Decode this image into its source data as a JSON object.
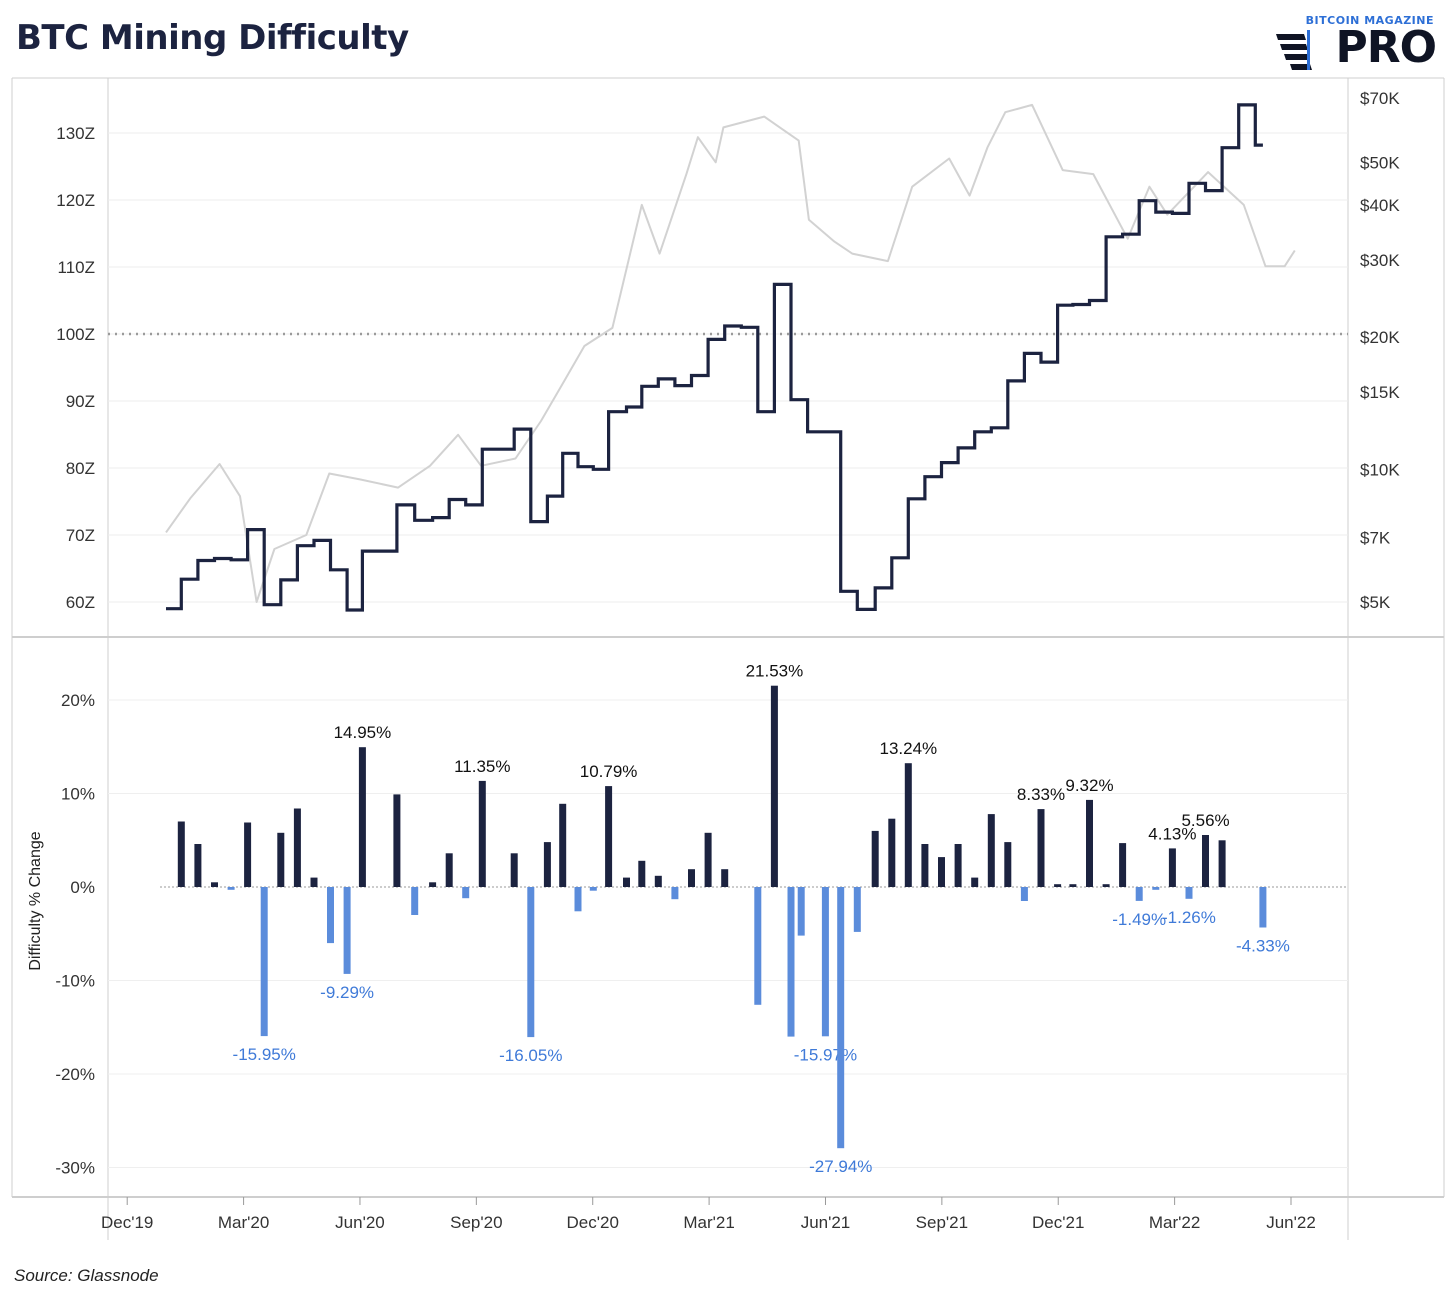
{
  "title": "BTC Mining Difficulty",
  "logo": {
    "top_text": "BITCOIN MAGAZINE",
    "main_text": "PRO"
  },
  "source": "Source: Glassnode",
  "colors": {
    "difficulty_line": "#1c2340",
    "price_line": "#d2d2d2",
    "bar_positive": "#1c2340",
    "bar_negative": "#5b8cdb",
    "negative_label": "#3f7ad8"
  },
  "chart_data": [
    {
      "type": "line",
      "title": "BTC Mining Difficulty",
      "x_tick_labels": [
        "Dec'19",
        "Mar'20",
        "Jun'20",
        "Sep'20",
        "Dec'20",
        "Mar'21",
        "Jun'21",
        "Sep'21",
        "Dec'21",
        "Mar'22",
        "Jun'22"
      ],
      "x_range": [
        "2019-12",
        "2022-06"
      ],
      "left_axis": {
        "tick_labels": [
          "60Z",
          "70Z",
          "80Z",
          "90Z",
          "100Z",
          "110Z",
          "120Z",
          "130Z"
        ],
        "ylim": [
          55,
          135
        ],
        "reference_line": 100
      },
      "right_axis": {
        "scale": "log",
        "tick_labels": [
          "$5K",
          "$7K",
          "$10K",
          "$15K",
          "$20K",
          "$30K",
          "$40K",
          "$50K",
          "$70K"
        ],
        "tick_values": [
          5000,
          7000,
          10000,
          15000,
          20000,
          30000,
          40000,
          50000,
          70000
        ]
      },
      "series": [
        {
          "axis": "left",
          "step": true,
          "points": [
            [
              "2020-01-01",
              59.0
            ],
            [
              "2020-01-13",
              63.4
            ],
            [
              "2020-01-26",
              66.2
            ],
            [
              "2020-02-08",
              66.5
            ],
            [
              "2020-02-21",
              66.3
            ],
            [
              "2020-03-05",
              70.8
            ],
            [
              "2020-03-18",
              59.6
            ],
            [
              "2020-03-31",
              63.3
            ],
            [
              "2020-04-13",
              68.4
            ],
            [
              "2020-04-26",
              69.2
            ],
            [
              "2020-05-09",
              64.8
            ],
            [
              "2020-05-22",
              58.8
            ],
            [
              "2020-06-03",
              67.6
            ],
            [
              "2020-06-20",
              67.6
            ],
            [
              "2020-06-30",
              74.5
            ],
            [
              "2020-07-14",
              72.2
            ],
            [
              "2020-07-28",
              72.6
            ],
            [
              "2020-08-10",
              75.3
            ],
            [
              "2020-08-23",
              74.5
            ],
            [
              "2020-09-05",
              82.8
            ],
            [
              "2020-09-18",
              82.8
            ],
            [
              "2020-09-30",
              85.8
            ],
            [
              "2020-10-13",
              72.0
            ],
            [
              "2020-10-26",
              75.8
            ],
            [
              "2020-11-07",
              82.2
            ],
            [
              "2020-11-19",
              80.2
            ],
            [
              "2020-12-01",
              79.8
            ],
            [
              "2020-12-13",
              88.4
            ],
            [
              "2020-12-27",
              89.1
            ],
            [
              "2021-01-08",
              92.2
            ],
            [
              "2021-01-21",
              93.3
            ],
            [
              "2021-02-03",
              92.3
            ],
            [
              "2021-02-16",
              93.8
            ],
            [
              "2021-03-01",
              99.2
            ],
            [
              "2021-03-14",
              101.2
            ],
            [
              "2021-03-27",
              101.0
            ],
            [
              "2021-04-09",
              88.4
            ],
            [
              "2021-04-22",
              107.4
            ],
            [
              "2021-05-05",
              90.2
            ],
            [
              "2021-05-18",
              85.4
            ],
            [
              "2021-06-01",
              85.4
            ],
            [
              "2021-06-13",
              61.6
            ],
            [
              "2021-06-26",
              58.9
            ],
            [
              "2021-07-10",
              62.1
            ],
            [
              "2021-07-23",
              66.6
            ],
            [
              "2021-08-05",
              75.4
            ],
            [
              "2021-08-18",
              78.7
            ],
            [
              "2021-08-31",
              80.8
            ],
            [
              "2021-09-13",
              83.0
            ],
            [
              "2021-09-26",
              85.4
            ],
            [
              "2021-10-09",
              86.0
            ],
            [
              "2021-10-22",
              93.0
            ],
            [
              "2021-11-04",
              97.1
            ],
            [
              "2021-11-17",
              95.8
            ],
            [
              "2021-11-30",
              104.3
            ],
            [
              "2021-12-12",
              104.4
            ],
            [
              "2021-12-25",
              105.0
            ],
            [
              "2022-01-07",
              114.5
            ],
            [
              "2022-01-20",
              114.9
            ],
            [
              "2022-02-02",
              119.9
            ],
            [
              "2022-02-15",
              118.2
            ],
            [
              "2022-02-28",
              118.0
            ],
            [
              "2022-03-13",
              122.5
            ],
            [
              "2022-03-26",
              121.4
            ],
            [
              "2022-04-08",
              127.8
            ],
            [
              "2022-04-21",
              134.2
            ],
            [
              "2022-05-04",
              128.2
            ],
            [
              "2022-05-10",
              128.2
            ]
          ]
        },
        {
          "axis": "right",
          "points": [
            [
              "2020-01-01",
              7200
            ],
            [
              "2020-01-20",
              8600
            ],
            [
              "2020-02-12",
              10300
            ],
            [
              "2020-02-28",
              8700
            ],
            [
              "2020-03-12",
              5000
            ],
            [
              "2020-03-26",
              6600
            ],
            [
              "2020-04-20",
              7100
            ],
            [
              "2020-05-08",
              9800
            ],
            [
              "2020-06-01",
              9500
            ],
            [
              "2020-07-01",
              9100
            ],
            [
              "2020-07-26",
              10200
            ],
            [
              "2020-08-17",
              12000
            ],
            [
              "2020-09-04",
              10200
            ],
            [
              "2020-10-01",
              10600
            ],
            [
              "2020-10-21",
              12900
            ],
            [
              "2020-11-06",
              15500
            ],
            [
              "2020-11-24",
              19100
            ],
            [
              "2020-12-16",
              21000
            ],
            [
              "2021-01-08",
              40000
            ],
            [
              "2021-01-22",
              31000
            ],
            [
              "2021-02-12",
              47000
            ],
            [
              "2021-02-21",
              57000
            ],
            [
              "2021-03-07",
              50000
            ],
            [
              "2021-03-13",
              60000
            ],
            [
              "2021-04-14",
              63500
            ],
            [
              "2021-05-11",
              56000
            ],
            [
              "2021-05-19",
              37000
            ],
            [
              "2021-06-08",
              33000
            ],
            [
              "2021-06-22",
              31000
            ],
            [
              "2021-07-20",
              29800
            ],
            [
              "2021-08-08",
              44000
            ],
            [
              "2021-09-06",
              51000
            ],
            [
              "2021-09-22",
              42000
            ],
            [
              "2021-10-06",
              54000
            ],
            [
              "2021-10-20",
              65000
            ],
            [
              "2021-11-10",
              67500
            ],
            [
              "2021-12-04",
              48000
            ],
            [
              "2021-12-28",
              47000
            ],
            [
              "2022-01-24",
              33500
            ],
            [
              "2022-02-10",
              44000
            ],
            [
              "2022-02-24",
              38000
            ],
            [
              "2022-03-28",
              47500
            ],
            [
              "2022-04-25",
              40000
            ],
            [
              "2022-05-12",
              29000
            ],
            [
              "2022-05-27",
              29000
            ],
            [
              "2022-06-04",
              31500
            ]
          ]
        }
      ]
    },
    {
      "type": "bar",
      "ylabel": "Difficulty % Change",
      "y_tick_labels": [
        "20%",
        "10%",
        "0%",
        "-10%",
        "-20%",
        "-30%"
      ],
      "ylim": [
        -33,
        26
      ],
      "x_tick_labels": [
        "Dec'19",
        "Mar'20",
        "Jun'20",
        "Sep'20",
        "Dec'20",
        "Mar'21",
        "Jun'21",
        "Sep'21",
        "Dec'21",
        "Mar'22",
        "Jun'22"
      ],
      "x_range": [
        "2019-12",
        "2022-06"
      ],
      "bars": [
        [
          "2020-01-13",
          7.0
        ],
        [
          "2020-01-26",
          4.6
        ],
        [
          "2020-02-08",
          0.5
        ],
        [
          "2020-02-21",
          -0.3
        ],
        [
          "2020-03-05",
          6.9
        ],
        [
          "2020-03-18",
          -15.95
        ],
        [
          "2020-03-31",
          5.8
        ],
        [
          "2020-04-13",
          8.4
        ],
        [
          "2020-04-26",
          1.0
        ],
        [
          "2020-05-09",
          -6.0
        ],
        [
          "2020-05-22",
          -9.29
        ],
        [
          "2020-06-03",
          14.95
        ],
        [
          "2020-06-30",
          9.9
        ],
        [
          "2020-07-14",
          -3.0
        ],
        [
          "2020-07-28",
          0.5
        ],
        [
          "2020-08-10",
          3.6
        ],
        [
          "2020-08-23",
          -1.2
        ],
        [
          "2020-09-05",
          11.35
        ],
        [
          "2020-09-30",
          3.6
        ],
        [
          "2020-10-13",
          -16.05
        ],
        [
          "2020-10-26",
          4.8
        ],
        [
          "2020-11-07",
          8.9
        ],
        [
          "2020-11-19",
          -2.6
        ],
        [
          "2020-12-01",
          -0.4
        ],
        [
          "2020-12-13",
          10.79
        ],
        [
          "2020-12-27",
          1.0
        ],
        [
          "2021-01-08",
          2.8
        ],
        [
          "2021-01-21",
          1.2
        ],
        [
          "2021-02-03",
          -1.3
        ],
        [
          "2021-02-16",
          1.9
        ],
        [
          "2021-03-01",
          5.8
        ],
        [
          "2021-03-14",
          1.9
        ],
        [
          "2021-04-09",
          -12.6
        ],
        [
          "2021-04-22",
          21.53
        ],
        [
          "2021-05-05",
          -16.0
        ],
        [
          "2021-05-13",
          -5.2
        ],
        [
          "2021-06-01",
          -15.97
        ],
        [
          "2021-06-13",
          -27.94
        ],
        [
          "2021-06-26",
          -4.8
        ],
        [
          "2021-07-10",
          6.0
        ],
        [
          "2021-07-23",
          7.3
        ],
        [
          "2021-08-05",
          13.24
        ],
        [
          "2021-08-18",
          4.6
        ],
        [
          "2021-08-31",
          3.2
        ],
        [
          "2021-09-13",
          4.6
        ],
        [
          "2021-09-26",
          1.0
        ],
        [
          "2021-10-09",
          7.8
        ],
        [
          "2021-10-22",
          4.8
        ],
        [
          "2021-11-04",
          -1.5
        ],
        [
          "2021-11-17",
          8.33
        ],
        [
          "2021-11-30",
          0.3
        ],
        [
          "2021-12-12",
          0.3
        ],
        [
          "2021-12-25",
          9.32
        ],
        [
          "2022-01-07",
          0.3
        ],
        [
          "2022-01-20",
          4.7
        ],
        [
          "2022-02-02",
          -1.49
        ],
        [
          "2022-02-15",
          -0.3
        ],
        [
          "2022-02-28",
          4.13
        ],
        [
          "2022-03-13",
          -1.26
        ],
        [
          "2022-03-26",
          5.56
        ],
        [
          "2022-04-08",
          5.0
        ],
        [
          "2022-05-10",
          -4.33
        ]
      ],
      "annotated_values": [
        -15.95,
        -9.29,
        14.95,
        11.35,
        -16.05,
        10.79,
        21.53,
        -15.97,
        -27.94,
        13.24,
        8.33,
        9.32,
        -1.49,
        4.13,
        -1.26,
        5.56,
        -4.33
      ]
    }
  ]
}
